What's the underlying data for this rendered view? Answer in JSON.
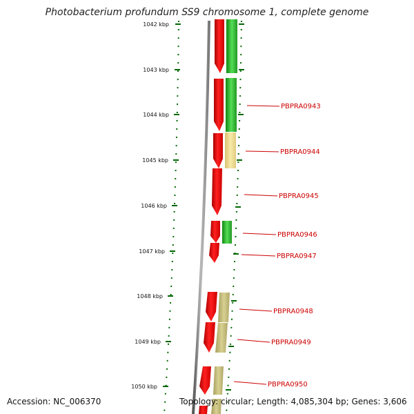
{
  "title": "Photobacterium profundum SS9 chromosome 1, complete genome",
  "footer": {
    "accession": "Accession: NC_006370",
    "summary": "Topology: circular; Length: 4,085,304 bp; Genes: 3,606"
  },
  "ticks": [
    {
      "label": "1042 kbp"
    },
    {
      "label": "1043 kbp"
    },
    {
      "label": "1044 kbp"
    },
    {
      "label": "1045 kbp"
    },
    {
      "label": "1046 kbp"
    },
    {
      "label": "1047 kbp"
    },
    {
      "label": "1048 kbp"
    },
    {
      "label": "1049 kbp"
    },
    {
      "label": "1050 kbp"
    }
  ],
  "genes": [
    {
      "label": "PBPRA0943"
    },
    {
      "label": "PBPRA0944"
    },
    {
      "label": "PBPRA0945"
    },
    {
      "label": "PBPRA0946"
    },
    {
      "label": "PBPRA0947"
    },
    {
      "label": "PBPRA0948"
    },
    {
      "label": "PBPRA0949"
    },
    {
      "label": "PBPRA0950"
    }
  ],
  "colors": {
    "cds": "#ff0000",
    "cog_green": "#22bb22",
    "cog_yellow": "#eedd88",
    "cog_olive": "#c8c080",
    "backbone": "#888888",
    "tick": "#006600",
    "label": "#cc0000"
  }
}
